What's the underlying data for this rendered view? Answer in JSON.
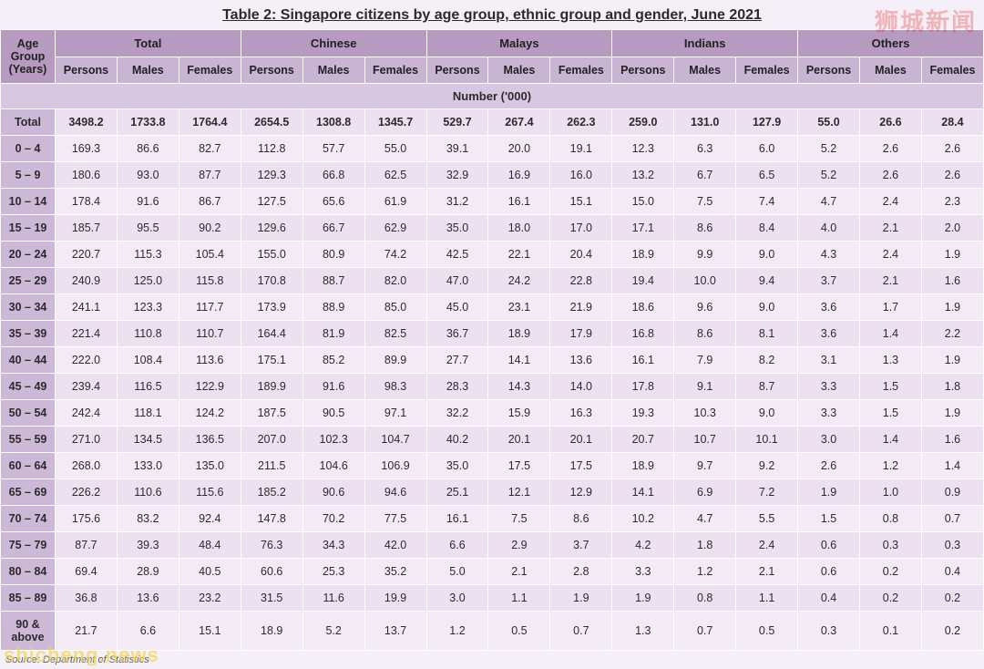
{
  "title": "Table 2: Singapore citizens by age group, ethnic group and gender, June 2021",
  "unit_label": "Number ('000)",
  "source_note": "Source: Department of Statistics",
  "watermark_top_right": "狮城新闻",
  "watermark_bottom_left": "shicheng.news",
  "colors": {
    "header_bg": "#b69ac0",
    "subheader_bg": "#c9b4d4",
    "age_col_bg": "#cdb8d8",
    "row_odd_bg": "#f3eaf5",
    "row_even_bg": "#ede1f1",
    "unit_row_bg": "#d8c7e0",
    "border": "#ffffff",
    "text": "#2b2b2b",
    "page_bg": "#f5eff7"
  },
  "header": {
    "age_label": "Age Group (Years)",
    "groups": [
      "Total",
      "Chinese",
      "Malays",
      "Indians",
      "Others"
    ],
    "sub": [
      "Persons",
      "Males",
      "Females"
    ]
  },
  "rows": [
    {
      "age": "Total",
      "v": [
        3498.2,
        1733.8,
        1764.4,
        2654.5,
        1308.8,
        1345.7,
        529.7,
        267.4,
        262.3,
        259.0,
        131.0,
        127.9,
        55.0,
        26.6,
        28.4
      ]
    },
    {
      "age": "0 – 4",
      "v": [
        169.3,
        86.6,
        82.7,
        112.8,
        57.7,
        55.0,
        39.1,
        20.0,
        19.1,
        12.3,
        6.3,
        6.0,
        5.2,
        2.6,
        2.6
      ]
    },
    {
      "age": "5 – 9",
      "v": [
        180.6,
        93.0,
        87.7,
        129.3,
        66.8,
        62.5,
        32.9,
        16.9,
        16.0,
        13.2,
        6.7,
        6.5,
        5.2,
        2.6,
        2.6
      ]
    },
    {
      "age": "10 – 14",
      "v": [
        178.4,
        91.6,
        86.7,
        127.5,
        65.6,
        61.9,
        31.2,
        16.1,
        15.1,
        15.0,
        7.5,
        7.4,
        4.7,
        2.4,
        2.3
      ]
    },
    {
      "age": "15 – 19",
      "v": [
        185.7,
        95.5,
        90.2,
        129.6,
        66.7,
        62.9,
        35.0,
        18.0,
        17.0,
        17.1,
        8.6,
        8.4,
        4.0,
        2.1,
        2.0
      ]
    },
    {
      "age": "20 – 24",
      "v": [
        220.7,
        115.3,
        105.4,
        155.0,
        80.9,
        74.2,
        42.5,
        22.1,
        20.4,
        18.9,
        9.9,
        9.0,
        4.3,
        2.4,
        1.9
      ]
    },
    {
      "age": "25 – 29",
      "v": [
        240.9,
        125.0,
        115.8,
        170.8,
        88.7,
        82.0,
        47.0,
        24.2,
        22.8,
        19.4,
        10.0,
        9.4,
        3.7,
        2.1,
        1.6
      ]
    },
    {
      "age": "30 – 34",
      "v": [
        241.1,
        123.3,
        117.7,
        173.9,
        88.9,
        85.0,
        45.0,
        23.1,
        21.9,
        18.6,
        9.6,
        9.0,
        3.6,
        1.7,
        1.9
      ]
    },
    {
      "age": "35 – 39",
      "v": [
        221.4,
        110.8,
        110.7,
        164.4,
        81.9,
        82.5,
        36.7,
        18.9,
        17.9,
        16.8,
        8.6,
        8.1,
        3.6,
        1.4,
        2.2
      ]
    },
    {
      "age": "40 – 44",
      "v": [
        222.0,
        108.4,
        113.6,
        175.1,
        85.2,
        89.9,
        27.7,
        14.1,
        13.6,
        16.1,
        7.9,
        8.2,
        3.1,
        1.3,
        1.9
      ]
    },
    {
      "age": "45 – 49",
      "v": [
        239.4,
        116.5,
        122.9,
        189.9,
        91.6,
        98.3,
        28.3,
        14.3,
        14.0,
        17.8,
        9.1,
        8.7,
        3.3,
        1.5,
        1.8
      ]
    },
    {
      "age": "50 – 54",
      "v": [
        242.4,
        118.1,
        124.2,
        187.5,
        90.5,
        97.1,
        32.2,
        15.9,
        16.3,
        19.3,
        10.3,
        9.0,
        3.3,
        1.5,
        1.9
      ]
    },
    {
      "age": "55 – 59",
      "v": [
        271.0,
        134.5,
        136.5,
        207.0,
        102.3,
        104.7,
        40.2,
        20.1,
        20.1,
        20.7,
        10.7,
        10.1,
        3.0,
        1.4,
        1.6
      ]
    },
    {
      "age": "60 – 64",
      "v": [
        268.0,
        133.0,
        135.0,
        211.5,
        104.6,
        106.9,
        35.0,
        17.5,
        17.5,
        18.9,
        9.7,
        9.2,
        2.6,
        1.2,
        1.4
      ]
    },
    {
      "age": "65 – 69",
      "v": [
        226.2,
        110.6,
        115.6,
        185.2,
        90.6,
        94.6,
        25.1,
        12.1,
        12.9,
        14.1,
        6.9,
        7.2,
        1.9,
        1.0,
        0.9
      ]
    },
    {
      "age": "70 – 74",
      "v": [
        175.6,
        83.2,
        92.4,
        147.8,
        70.2,
        77.5,
        16.1,
        7.5,
        8.6,
        10.2,
        4.7,
        5.5,
        1.5,
        0.8,
        0.7
      ]
    },
    {
      "age": "75 – 79",
      "v": [
        87.7,
        39.3,
        48.4,
        76.3,
        34.3,
        42.0,
        6.6,
        2.9,
        3.7,
        4.2,
        1.8,
        2.4,
        0.6,
        0.3,
        0.3
      ]
    },
    {
      "age": "80 – 84",
      "v": [
        69.4,
        28.9,
        40.5,
        60.6,
        25.3,
        35.2,
        5.0,
        2.1,
        2.8,
        3.3,
        1.2,
        2.1,
        0.6,
        0.2,
        0.4
      ]
    },
    {
      "age": "85 – 89",
      "v": [
        36.8,
        13.6,
        23.2,
        31.5,
        11.6,
        19.9,
        3.0,
        1.1,
        1.9,
        1.9,
        0.8,
        1.1,
        0.4,
        0.2,
        0.2
      ]
    },
    {
      "age": "90 & above",
      "v": [
        21.7,
        6.6,
        15.1,
        18.9,
        5.2,
        13.7,
        1.2,
        0.5,
        0.7,
        1.3,
        0.7,
        0.5,
        0.3,
        0.1,
        0.2
      ]
    }
  ]
}
